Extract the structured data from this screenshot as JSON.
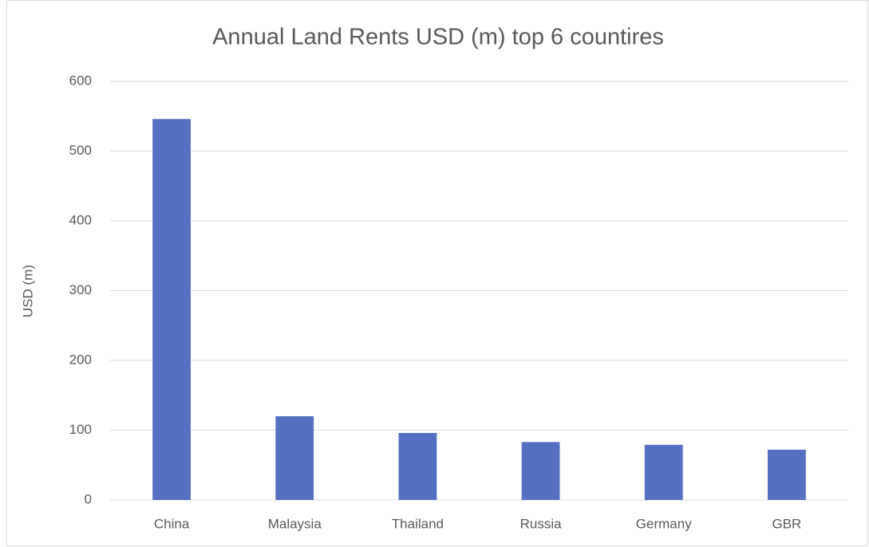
{
  "chart_data": {
    "type": "bar",
    "title": "Annual Land Rents USD (m) top 6 countires",
    "y_label": "USD (m)",
    "categories": [
      "China",
      "Malaysia",
      "Thailand",
      "Russia",
      "Germany",
      "GBR"
    ],
    "values": [
      546,
      120,
      96,
      83,
      79,
      72
    ],
    "color": "#5470c1",
    "ylim": [
      0,
      600
    ],
    "yticks": [
      0,
      100,
      200,
      300,
      400,
      500,
      600
    ],
    "grid": true
  }
}
